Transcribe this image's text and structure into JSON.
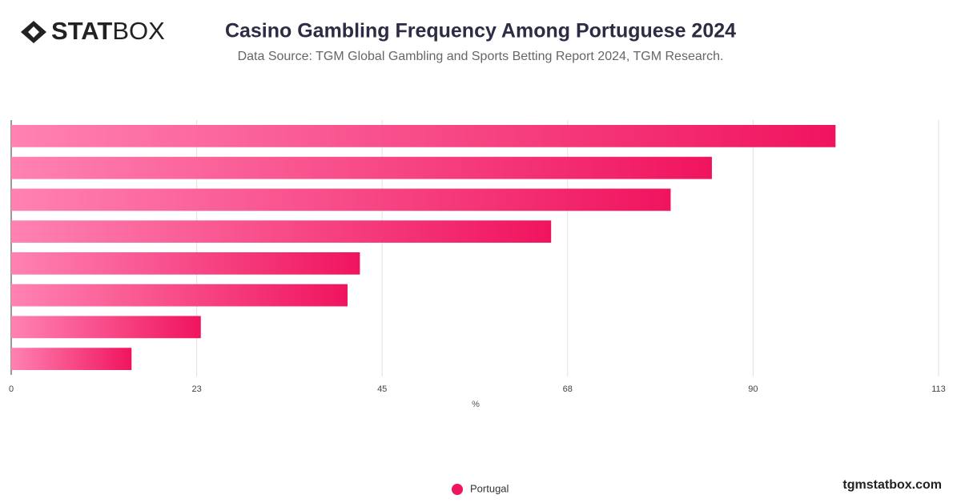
{
  "logo": {
    "bold": "STAT",
    "light": "BOX"
  },
  "footer": "tgmstatbox.com",
  "chart_data": {
    "type": "bar",
    "orientation": "horizontal",
    "title": "Casino Gambling Frequency Among Portuguese 2024",
    "subtitle": "Data Source: TGM Global Gambling and Sports Betting Report 2024, TGM Research.",
    "x_label": "%",
    "categories": [
      null,
      null,
      null,
      null,
      null,
      null,
      null,
      null
    ],
    "series": [
      {
        "name": "Portugal",
        "color": "#f0145f",
        "values": [
          100,
          85,
          80,
          65.5,
          42.3,
          40.8,
          23,
          14.6
        ]
      }
    ],
    "xlim": [
      0,
      112.5
    ],
    "xticks": [
      0,
      {
        "value": 22.5,
        "label": "23"
      },
      45,
      {
        "value": 67.5,
        "label": "68"
      },
      90,
      {
        "value": 112.5,
        "label": "113"
      }
    ],
    "grid": true,
    "legend": "bottom"
  }
}
